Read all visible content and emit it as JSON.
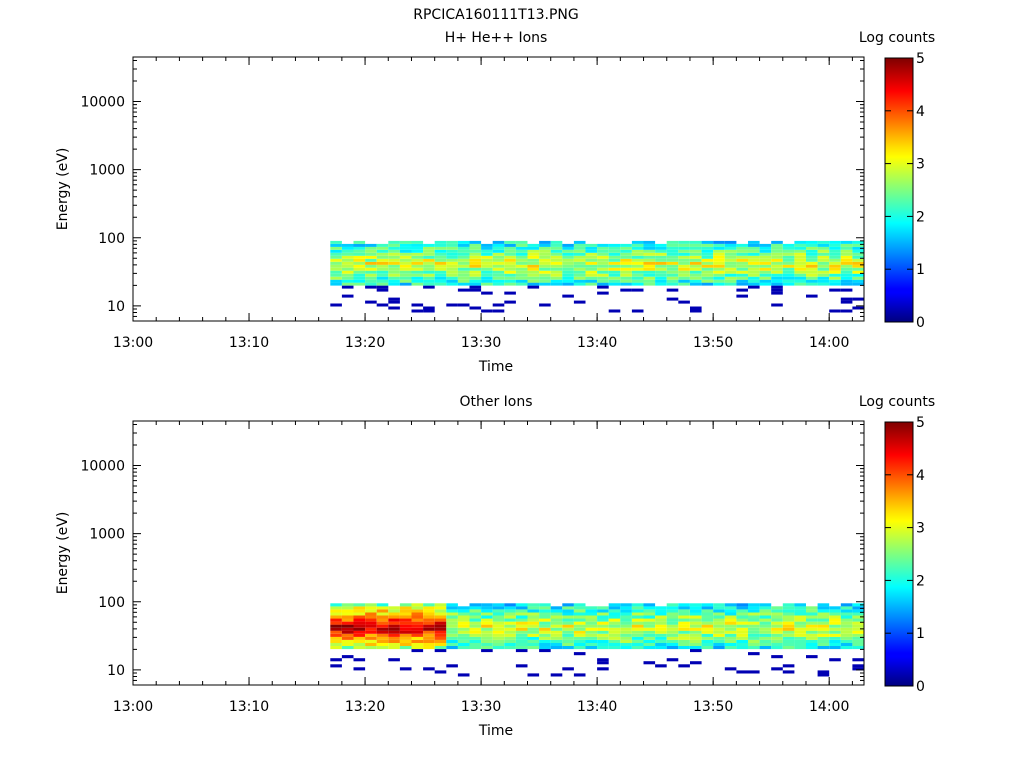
{
  "figure_title": "RPCICA160111T13.PNG",
  "chart_data": [
    {
      "type": "heatmap",
      "title": "H+ He++ Ions",
      "xlabel": "Time",
      "ylabel": "Energy (eV)",
      "y_scale": "log",
      "ylim": [
        6,
        45000
      ],
      "x_ticks": [
        "13:00",
        "13:10",
        "13:20",
        "13:30",
        "13:40",
        "13:50",
        "14:00"
      ],
      "x_range": [
        "13:00",
        "14:03"
      ],
      "y_ticks": [
        "10",
        "100",
        "1000",
        "10000"
      ],
      "data_time_range": [
        "13:17",
        "14:03"
      ],
      "data_energy_range_eV": [
        8,
        90
      ],
      "colorbar": {
        "label": "Log counts",
        "min": 0,
        "max": 5,
        "ticks": [
          "0",
          "1",
          "2",
          "3",
          "4",
          "5"
        ]
      },
      "grid": false
    },
    {
      "type": "heatmap",
      "title": "Other Ions",
      "xlabel": "Time",
      "ylabel": "Energy (eV)",
      "y_scale": "log",
      "ylim": [
        6,
        45000
      ],
      "x_ticks": [
        "13:00",
        "13:10",
        "13:20",
        "13:30",
        "13:40",
        "13:50",
        "14:00"
      ],
      "x_range": [
        "13:00",
        "14:03"
      ],
      "y_ticks": [
        "10",
        "100",
        "1000",
        "10000"
      ],
      "data_time_range": [
        "13:17",
        "14:03"
      ],
      "data_energy_range_eV": [
        8,
        95
      ],
      "colorbar": {
        "label": "Log counts",
        "min": 0,
        "max": 5,
        "ticks": [
          "0",
          "1",
          "2",
          "3",
          "4",
          "5"
        ]
      },
      "grid": false
    }
  ]
}
